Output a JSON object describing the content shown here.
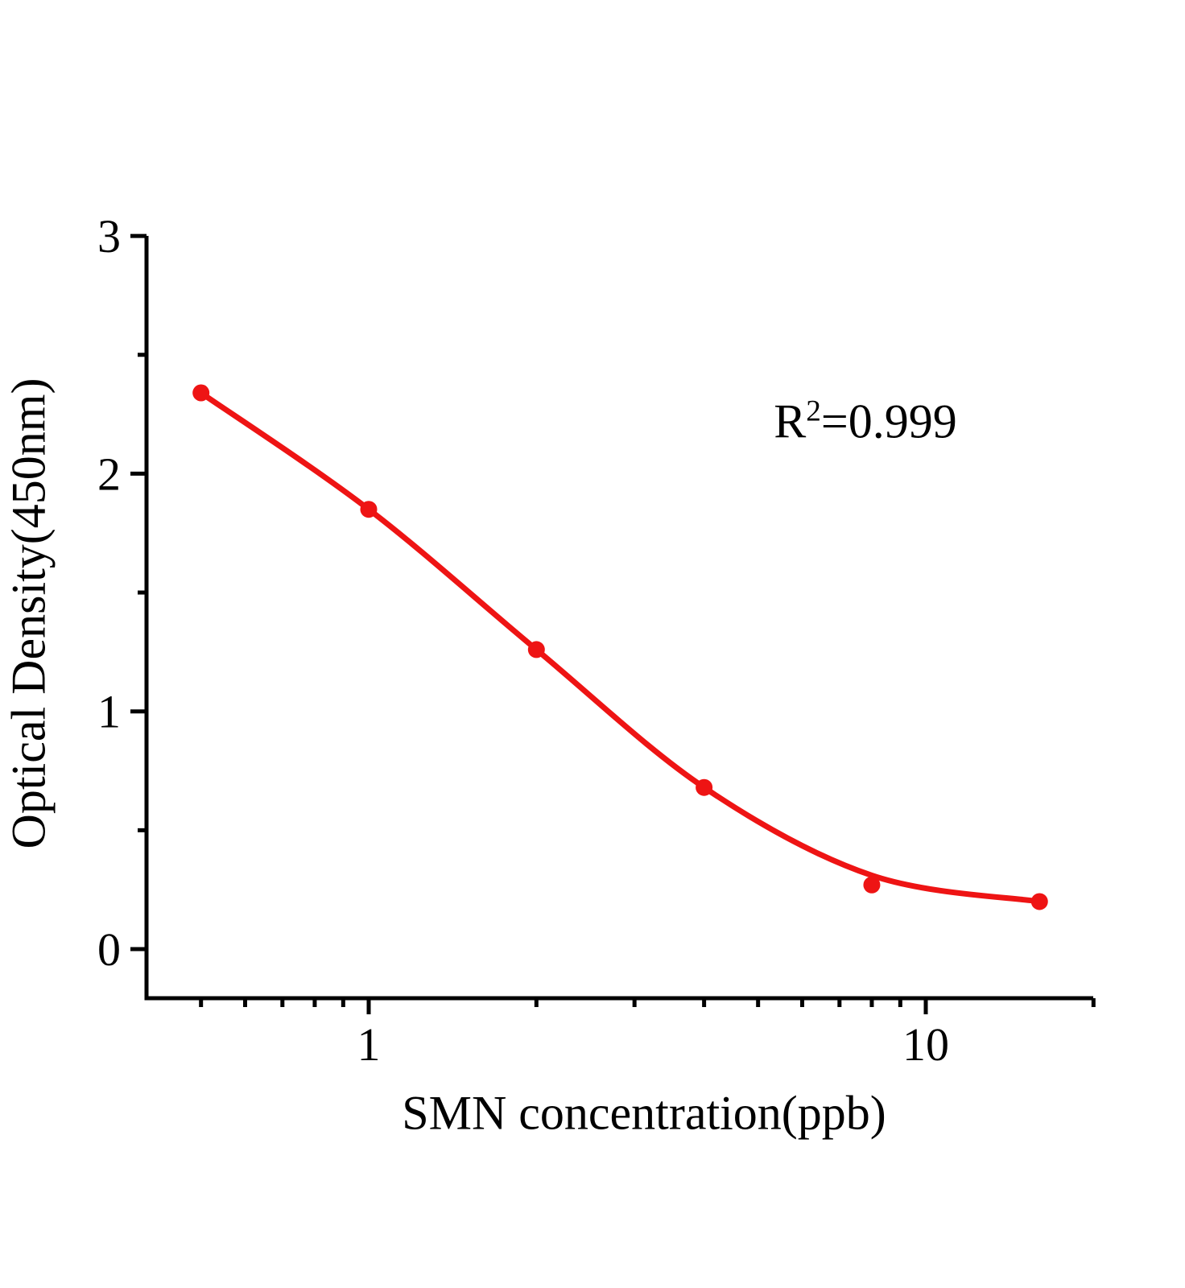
{
  "chart_data": {
    "type": "scatter",
    "title": "",
    "xlabel": "SMN concentration(ppb)",
    "ylabel": "Optical Density(450nm)",
    "x_scale": "log",
    "x_range": [
      0.4,
      20
    ],
    "y_range": [
      -0.21,
      3
    ],
    "grid": false,
    "legend": "none",
    "x_major_ticks": [
      1,
      10
    ],
    "x_major_tick_labels": [
      "1",
      "10"
    ],
    "x_minor_ticks": [
      0.5,
      0.6,
      0.7,
      0.8,
      0.9,
      2,
      3,
      4,
      5,
      6,
      7,
      8,
      9,
      20
    ],
    "y_major_ticks": [
      0,
      1,
      2,
      3
    ],
    "y_major_tick_labels": [
      "0",
      "1",
      "2",
      "3"
    ],
    "y_minor_ticks": [
      0.5,
      1.5,
      2.5
    ],
    "points": [
      {
        "x": 0.5,
        "y": 2.34
      },
      {
        "x": 1,
        "y": 1.85
      },
      {
        "x": 2,
        "y": 1.26
      },
      {
        "x": 4,
        "y": 0.68
      },
      {
        "x": 8,
        "y": 0.27
      },
      {
        "x": 16,
        "y": 0.2
      }
    ],
    "fit_curve_points": [
      {
        "x": 0.5,
        "y": 2.34
      },
      {
        "x": 1,
        "y": 1.85
      },
      {
        "x": 2,
        "y": 1.26
      },
      {
        "x": 4,
        "y": 0.68
      },
      {
        "x": 8,
        "y": 0.31
      },
      {
        "x": 16,
        "y": 0.2
      }
    ],
    "r_squared": 0.999,
    "annotation": {
      "base": "R",
      "sup": "2",
      "rest": "=0.999"
    },
    "series_color": "#ee1414",
    "axis_color": "#000000"
  }
}
